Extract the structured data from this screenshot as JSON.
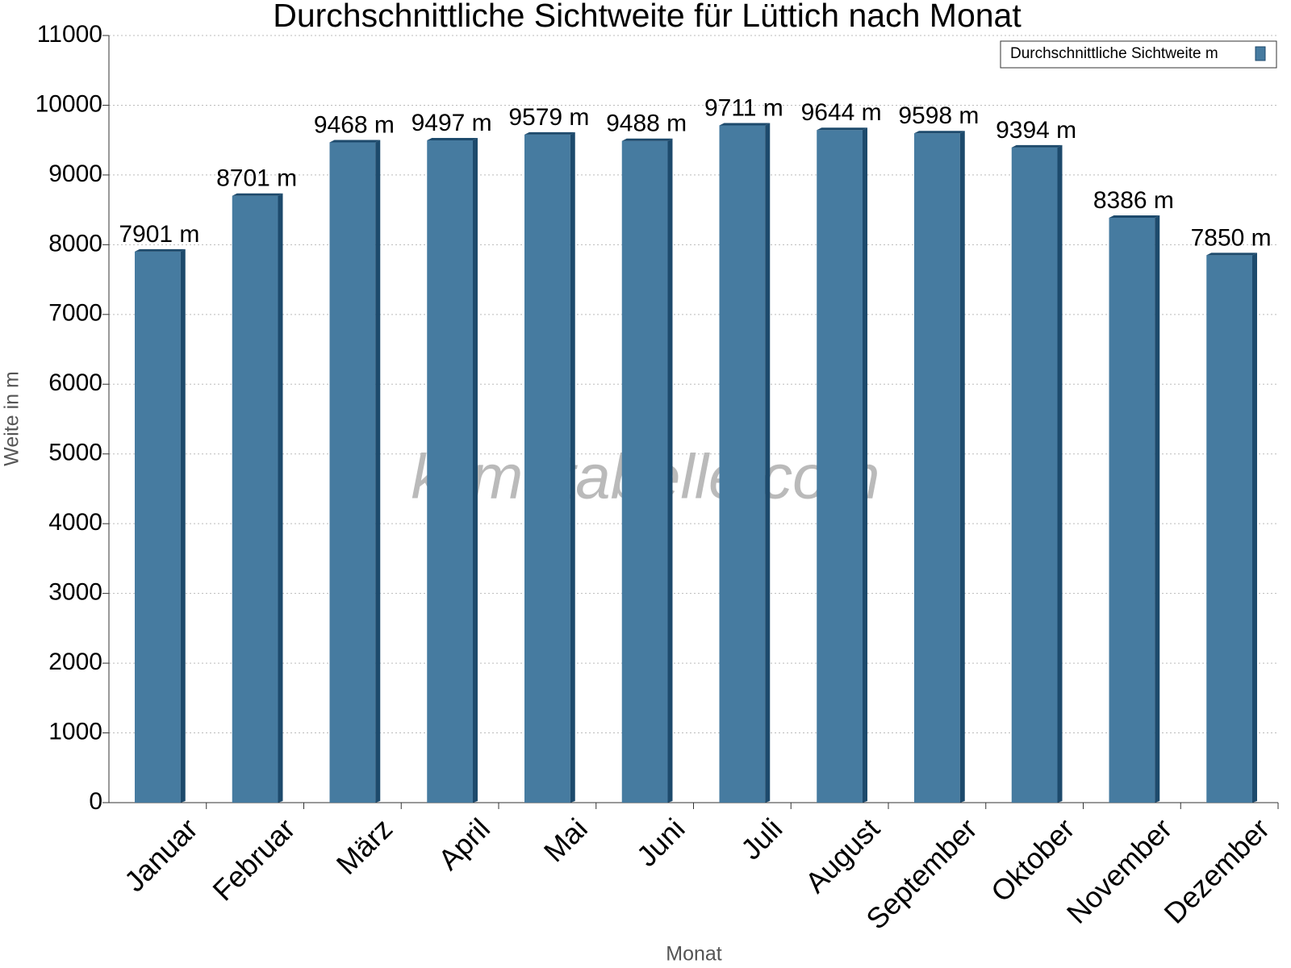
{
  "chart_data": {
    "type": "bar",
    "title": "Durchschnittliche Sichtweite für Lüttich nach Monat",
    "x_label": "Monat",
    "y_label": "Weite in m",
    "watermark": "klimatabelle.com",
    "categories": [
      "Januar",
      "Februar",
      "März",
      "April",
      "Mai",
      "Juni",
      "Juli",
      "August",
      "September",
      "Oktober",
      "November",
      "Dezember"
    ],
    "series": [
      {
        "name": "Durchschnittliche Sichtweite m",
        "color": "#467ba0",
        "values": [
          7901,
          8701,
          9468,
          9497,
          9579,
          9488,
          9711,
          9644,
          9598,
          9394,
          8386,
          7850
        ],
        "value_labels": [
          "7901 m",
          "8701 m",
          "9468 m",
          "9497 m",
          "9579 m",
          "9488 m",
          "9711 m",
          "9644 m",
          "9598 m",
          "9394 m",
          "8386 m",
          "7850 m"
        ]
      }
    ],
    "ylim": [
      0,
      11000
    ],
    "yticks": [
      0,
      1000,
      2000,
      3000,
      4000,
      5000,
      6000,
      7000,
      8000,
      9000,
      10000,
      11000
    ],
    "grid": true,
    "legend": "top-right"
  }
}
